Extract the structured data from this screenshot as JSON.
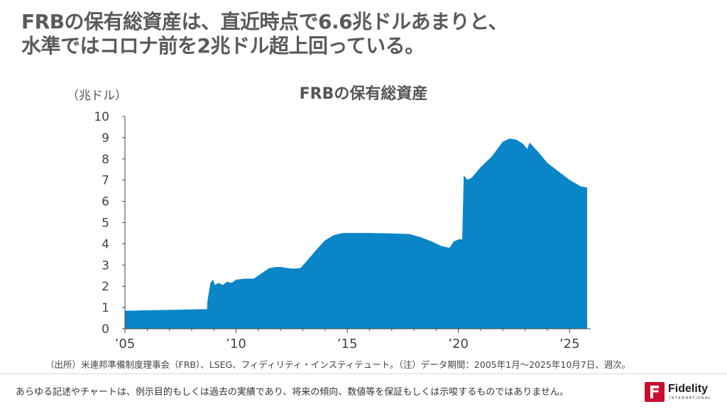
{
  "headline": {
    "line1": "FRBの保有総資産は、直近時点で6.6兆ドルあまりと、",
    "line2": "水準ではコロナ前を2兆ドル超上回っている。"
  },
  "chart_data": {
    "type": "area",
    "title": "FRBの保有総資産",
    "ylabel": "（兆ドル）",
    "xlabel": "",
    "ylim": [
      0,
      10
    ],
    "xlim": [
      2005.0,
      2025.95
    ],
    "y_ticks": [
      0,
      1,
      2,
      3,
      4,
      5,
      6,
      7,
      8,
      9,
      10
    ],
    "x_ticks": [
      {
        "value": 2005,
        "label": "’05"
      },
      {
        "value": 2010,
        "label": "’10"
      },
      {
        "value": 2015,
        "label": "’15"
      },
      {
        "value": 2020,
        "label": "’20"
      },
      {
        "value": 2025,
        "label": "’25"
      }
    ],
    "grid": false,
    "color": "#0a86c8",
    "series": [
      {
        "x": [
          2005.0,
          2006.0,
          2007.0,
          2008.0,
          2008.7,
          2008.72,
          2008.85,
          2008.95,
          2009.05,
          2009.2,
          2009.4,
          2009.6,
          2009.8,
          2010.0,
          2010.4,
          2010.8,
          2011.0,
          2011.5,
          2011.8,
          2012.0,
          2012.3,
          2012.6,
          2012.9,
          2013.2,
          2013.6,
          2014.0,
          2014.4,
          2014.8,
          2015.0,
          2016.0,
          2017.0,
          2017.8,
          2018.3,
          2018.8,
          2019.2,
          2019.6,
          2019.8,
          2020.0,
          2020.18,
          2020.25,
          2020.4,
          2020.6,
          2021.0,
          2021.5,
          2022.0,
          2022.3,
          2022.6,
          2022.9,
          2023.1,
          2023.2,
          2023.25,
          2023.6,
          2024.0,
          2024.5,
          2025.0,
          2025.5,
          2025.78
        ],
        "values": [
          0.84,
          0.86,
          0.88,
          0.9,
          0.92,
          1.3,
          2.15,
          2.3,
          2.05,
          2.15,
          2.05,
          2.2,
          2.15,
          2.3,
          2.35,
          2.35,
          2.5,
          2.85,
          2.9,
          2.9,
          2.85,
          2.82,
          2.85,
          3.2,
          3.7,
          4.15,
          4.4,
          4.5,
          4.5,
          4.5,
          4.48,
          4.45,
          4.3,
          4.1,
          3.9,
          3.8,
          4.1,
          4.2,
          4.2,
          7.2,
          7.0,
          7.1,
          7.6,
          8.1,
          8.8,
          8.95,
          8.9,
          8.7,
          8.45,
          8.75,
          8.7,
          8.3,
          7.8,
          7.4,
          7.0,
          6.7,
          6.65
        ]
      }
    ]
  },
  "footer": {
    "source": "（出所）米連邦準備制度理事会（FRB）、LSEG、フィディリティ・インスティテュート。（注）データ期間：2005年1月～2025年10月7日、週次。",
    "disclaimer": "あらゆる記述やチャートは、例示目的もしくは過去の実績であり、将来の傾向、数値等を保証もしくは示唆するものではありません。"
  },
  "logo": {
    "name": "Fidelity",
    "subtitle": "INTERNATIONAL",
    "icon": "fidelity-logo-mark-icon",
    "color": "#c8102e"
  }
}
